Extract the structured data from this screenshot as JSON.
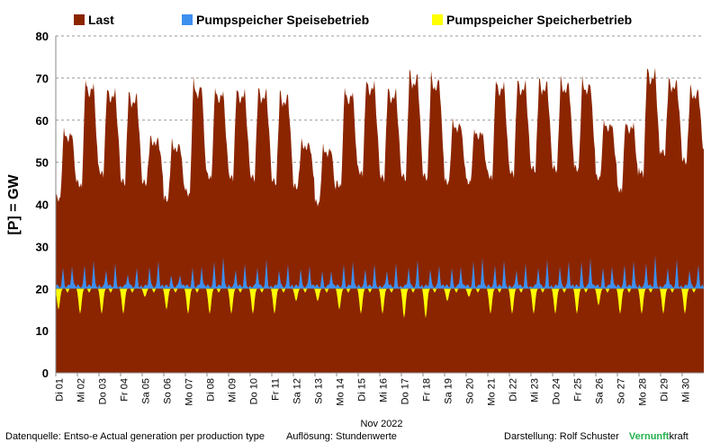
{
  "chart_data": {
    "type": "area",
    "ylabel": "[P] = GW",
    "xlabel": "Nov 2022",
    "ylim": [
      0,
      80
    ],
    "yticks": [
      0,
      10,
      20,
      30,
      40,
      50,
      60,
      70,
      80
    ],
    "grid": "horizontal dashed",
    "legend_position": "top",
    "baseline": 20,
    "categories": [
      "Di 01",
      "Mi 02",
      "Do 03",
      "Fr 04",
      "Sa 05",
      "So 06",
      "Mo 07",
      "Di 08",
      "Mi 09",
      "Do 10",
      "Fr 11",
      "Sa 12",
      "So 13",
      "Mo 14",
      "Di 15",
      "Mi 16",
      "Do 17",
      "Fr 18",
      "Sa 19",
      "So 20",
      "Mo 21",
      "Di 22",
      "Mi 23",
      "Do 24",
      "Fr 25",
      "Sa 26",
      "So 27",
      "Mo 28",
      "Di 29",
      "Mi 30"
    ],
    "series": [
      {
        "name": "Last",
        "color": "#8b2500",
        "daily_min": [
          41,
          44,
          47,
          45,
          45,
          41,
          42,
          46,
          46,
          46,
          45,
          44,
          40,
          44,
          47,
          46,
          46,
          46,
          45,
          45,
          46,
          47,
          48,
          48,
          48,
          46,
          43,
          47,
          52,
          50
        ],
        "daily_max": [
          58,
          70,
          68,
          67,
          56,
          55,
          70,
          68,
          68,
          68,
          67,
          55,
          54,
          68,
          70,
          68,
          72,
          71,
          60,
          58,
          70,
          70,
          70,
          70,
          70,
          60,
          60,
          73,
          70,
          68
        ]
      },
      {
        "name": "Pumpspeicher Speisebetrieb",
        "color": "#3d8ff0",
        "daily_peak_gw": [
          5,
          6,
          5,
          4,
          6,
          3,
          5,
          7,
          5,
          6,
          5,
          5,
          4,
          6,
          5,
          5,
          6,
          5,
          5,
          7,
          6,
          5,
          6,
          6,
          7,
          5,
          6,
          7,
          6,
          5
        ]
      },
      {
        "name": "Pumpspeicher Speicherbetrieb",
        "color": "#ffff00",
        "daily_peak_gw": [
          5,
          6,
          6,
          6,
          2,
          5,
          6,
          6,
          6,
          6,
          6,
          3,
          3,
          5,
          6,
          6,
          7,
          7,
          3,
          2,
          6,
          6,
          6,
          6,
          6,
          4,
          6,
          6,
          6,
          6
        ]
      }
    ]
  },
  "footer": {
    "source": "Datenquelle: Entso-e  Actual generation per production type",
    "resolution": "Auflösung: Stundenwerte",
    "credit_prefix": "Darstellung:  Rolf Schuster",
    "brand_green": "Vernunft",
    "brand_black": "kraft"
  }
}
